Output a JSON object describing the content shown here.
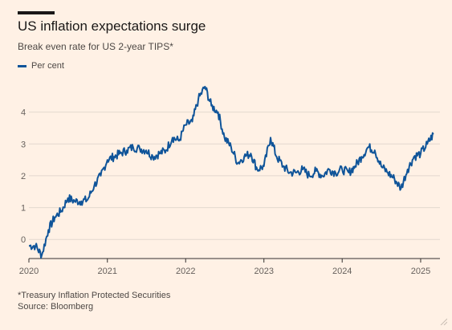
{
  "header": {
    "title": "US inflation expectations surge",
    "subtitle": "Break even rate for US 2-year TIPS*"
  },
  "legend": {
    "label": "Per cent"
  },
  "footer": {
    "footnote": "*Treasury Inflation Protected Securities",
    "source": "Source: Bloomberg"
  },
  "colors": {
    "background": "#fff1e5",
    "series": "#0f5499",
    "grid": "#e3d8cf",
    "axis": "#33302e"
  },
  "chart_data": {
    "type": "line",
    "title": "US inflation expectations surge",
    "subtitle": "Break even rate for US 2-year TIPS*",
    "xlabel": "",
    "ylabel": "",
    "ylim": [
      -0.6,
      5.0
    ],
    "xlim": [
      "2020-01-01",
      "2025-04-01"
    ],
    "grid": true,
    "legend_position": "top-left",
    "y_ticks": [
      0,
      1,
      2,
      3,
      4
    ],
    "x_ticks": [
      "2020",
      "2021",
      "2022",
      "2023",
      "2024",
      "2025"
    ],
    "series": [
      {
        "name": "Per cent",
        "x": [
          "2020-01-01",
          "2020-02-01",
          "2020-03-01",
          "2020-04-01",
          "2020-05-01",
          "2020-06-01",
          "2020-07-01",
          "2020-08-01",
          "2020-09-01",
          "2020-10-01",
          "2020-11-01",
          "2020-12-01",
          "2021-01-01",
          "2021-02-01",
          "2021-03-01",
          "2021-04-01",
          "2021-05-01",
          "2021-06-01",
          "2021-07-01",
          "2021-08-01",
          "2021-09-01",
          "2021-10-01",
          "2021-11-01",
          "2021-12-01",
          "2022-01-01",
          "2022-02-01",
          "2022-03-01",
          "2022-04-01",
          "2022-05-01",
          "2022-06-01",
          "2022-07-01",
          "2022-08-01",
          "2022-09-01",
          "2022-10-01",
          "2022-11-01",
          "2022-12-01",
          "2023-01-01",
          "2023-02-01",
          "2023-03-01",
          "2023-04-01",
          "2023-05-01",
          "2023-06-01",
          "2023-07-01",
          "2023-08-01",
          "2023-09-01",
          "2023-10-01",
          "2023-11-01",
          "2023-12-01",
          "2024-01-01",
          "2024-02-01",
          "2024-03-01",
          "2024-04-01",
          "2024-05-01",
          "2024-06-01",
          "2024-07-01",
          "2024-08-01",
          "2024-09-01",
          "2024-10-01",
          "2024-11-01",
          "2024-12-01",
          "2025-01-01",
          "2025-02-01",
          "2025-03-01"
        ],
        "values": [
          -0.2,
          -0.2,
          -0.5,
          0.3,
          0.7,
          0.9,
          1.3,
          1.2,
          1.2,
          1.25,
          1.7,
          2.0,
          2.5,
          2.6,
          2.7,
          2.8,
          2.9,
          2.85,
          2.8,
          2.6,
          2.7,
          2.8,
          3.2,
          3.1,
          3.6,
          3.7,
          4.4,
          4.8,
          4.2,
          4.0,
          3.2,
          2.9,
          2.4,
          2.6,
          2.7,
          2.2,
          2.3,
          3.2,
          2.6,
          2.3,
          2.1,
          2.1,
          2.2,
          2.0,
          2.15,
          2.0,
          2.2,
          2.1,
          2.2,
          2.1,
          2.3,
          2.6,
          2.9,
          2.8,
          2.3,
          2.1,
          1.9,
          1.6,
          2.2,
          2.6,
          2.7,
          3.0,
          3.3
        ]
      }
    ]
  }
}
